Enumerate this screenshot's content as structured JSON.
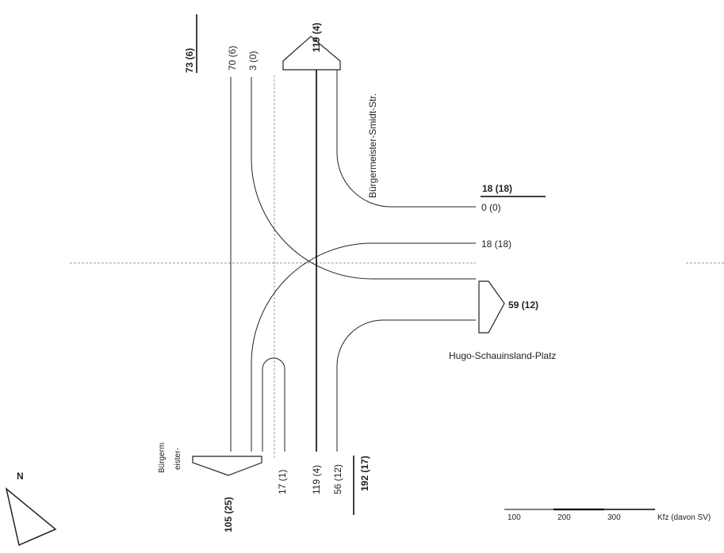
{
  "streets": {
    "north": "Bürgermeister-Smidt-Str.",
    "east": "Hugo-Schauinsland-Platz",
    "south_west_a": "Bürgerm",
    "south_west_b": "eister-"
  },
  "north_approach": {
    "total": "73 (6)",
    "left_lane": "70 (6)",
    "right_lane": "3 (0)",
    "exit_total": "119 (4)"
  },
  "east_approach": {
    "total": "18 (18)",
    "lane_upper": "0 (0)",
    "lane_lower": "18 (18)",
    "exit_total": "59 (12)"
  },
  "south_approach": {
    "exit_total": "105 (25)",
    "lane_uturn": "17 (1)",
    "lane_through": "119 (4)",
    "lane_right": "56 (12)",
    "total": "192 (17)"
  },
  "compass": {
    "label": "N"
  },
  "scale": {
    "ticks": [
      "100",
      "200",
      "300"
    ],
    "unit": "Kfz (davon SV)"
  }
}
